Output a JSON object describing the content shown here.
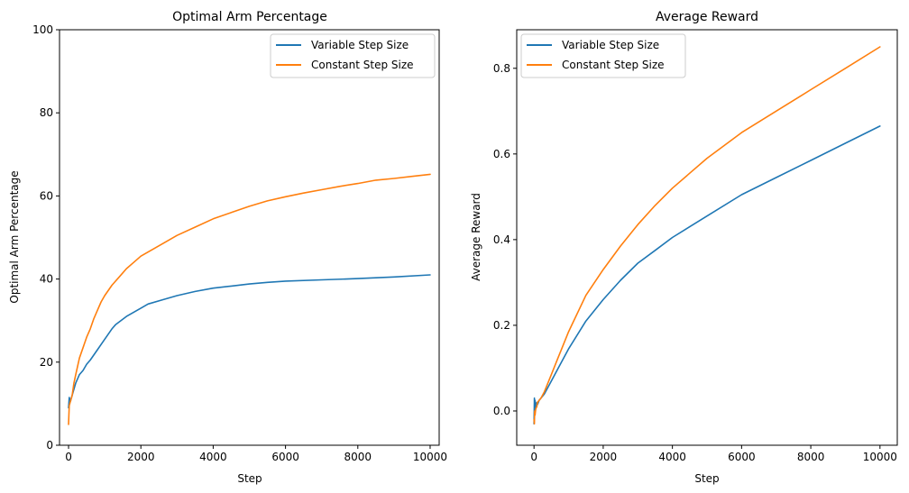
{
  "chart_data": [
    {
      "type": "line",
      "title": "Optimal Arm Percentage",
      "xlabel": "Step",
      "ylabel": "Optimal Arm Percentage",
      "xlim": [
        -250,
        10250
      ],
      "ylim": [
        0,
        100
      ],
      "xticks": [
        0,
        2000,
        4000,
        6000,
        8000,
        10000
      ],
      "xtick_labels": [
        "0",
        "2000",
        "4000",
        "6000",
        "8000",
        "10000"
      ],
      "yticks": [
        0,
        20,
        40,
        60,
        80,
        100
      ],
      "ytick_labels": [
        "0",
        "20",
        "40",
        "60",
        "80",
        "100"
      ],
      "grid": false,
      "legend": "top-right",
      "series": [
        {
          "name": "Variable Step Size",
          "color": "#1f77b4",
          "x": [
            0,
            20,
            50,
            100,
            150,
            200,
            300,
            400,
            500,
            600,
            800,
            1000,
            1200,
            1300,
            1600,
            2000,
            2200,
            2600,
            3000,
            3500,
            4000,
            4500,
            5000,
            5500,
            6000,
            7000,
            8000,
            9000,
            10000
          ],
          "y": [
            9,
            11.5,
            10.5,
            12,
            13.5,
            15,
            17,
            18,
            19.5,
            20.5,
            23,
            25.5,
            28,
            29,
            31,
            33,
            34,
            35,
            36,
            37,
            37.8,
            38.3,
            38.8,
            39.2,
            39.5,
            39.8,
            40.1,
            40.5,
            41
          ]
        },
        {
          "name": "Constant Step Size",
          "color": "#ff7f0e",
          "x": [
            0,
            20,
            50,
            100,
            150,
            200,
            300,
            400,
            500,
            600,
            700,
            800,
            900,
            1000,
            1200,
            1400,
            1600,
            1800,
            2000,
            2500,
            3000,
            3500,
            4000,
            4500,
            5000,
            5500,
            6000,
            6500,
            7000,
            7500,
            8000,
            8500,
            9000,
            9500,
            10000
          ],
          "y": [
            5,
            9.5,
            10.5,
            12,
            15,
            17,
            21,
            23.5,
            26,
            28,
            30.5,
            32.5,
            34.5,
            36,
            38.5,
            40.5,
            42.5,
            44,
            45.5,
            48,
            50.5,
            52.5,
            54.5,
            56,
            57.5,
            58.8,
            59.8,
            60.7,
            61.5,
            62.3,
            63,
            63.8,
            64.2,
            64.7,
            65.2
          ]
        }
      ]
    },
    {
      "type": "line",
      "title": "Average Reward",
      "xlabel": "Step",
      "ylabel": "Average Reward",
      "xlim": [
        -500,
        10500
      ],
      "ylim": [
        -0.08,
        0.89
      ],
      "xticks": [
        0,
        2000,
        4000,
        6000,
        8000,
        10000
      ],
      "xtick_labels": [
        "0",
        "2000",
        "4000",
        "6000",
        "8000",
        "10000"
      ],
      "yticks": [
        0,
        0.2,
        0.4,
        0.6,
        0.8
      ],
      "ytick_labels": [
        "0.0",
        "0.2",
        "0.4",
        "0.6",
        "0.8"
      ],
      "grid": false,
      "legend": "top-left",
      "series": [
        {
          "name": "Variable Step Size",
          "color": "#1f77b4",
          "x": [
            0,
            10,
            20,
            30,
            50,
            80,
            100,
            150,
            200,
            300,
            500,
            700,
            1000,
            1500,
            2000,
            2500,
            3000,
            3500,
            4000,
            4500,
            5000,
            6000,
            7000,
            8000,
            9000,
            10000
          ],
          "y": [
            -0.03,
            0.03,
            0.0,
            0.025,
            0.005,
            0.02,
            0.015,
            0.025,
            0.03,
            0.04,
            0.07,
            0.1,
            0.145,
            0.21,
            0.26,
            0.305,
            0.345,
            0.375,
            0.405,
            0.43,
            0.455,
            0.505,
            0.545,
            0.585,
            0.625,
            0.665
          ]
        },
        {
          "name": "Constant Step Size",
          "color": "#ff7f0e",
          "x": [
            0,
            10,
            20,
            30,
            50,
            80,
            100,
            150,
            200,
            300,
            500,
            700,
            1000,
            1500,
            2000,
            2500,
            3000,
            3500,
            4000,
            4500,
            5000,
            6000,
            7000,
            8000,
            9000,
            10000
          ],
          "y": [
            -0.02,
            -0.03,
            0.0,
            -0.01,
            0.005,
            0.01,
            0.02,
            0.025,
            0.03,
            0.045,
            0.085,
            0.125,
            0.185,
            0.27,
            0.33,
            0.385,
            0.435,
            0.48,
            0.52,
            0.555,
            0.59,
            0.65,
            0.7,
            0.75,
            0.8,
            0.85
          ]
        }
      ]
    }
  ]
}
